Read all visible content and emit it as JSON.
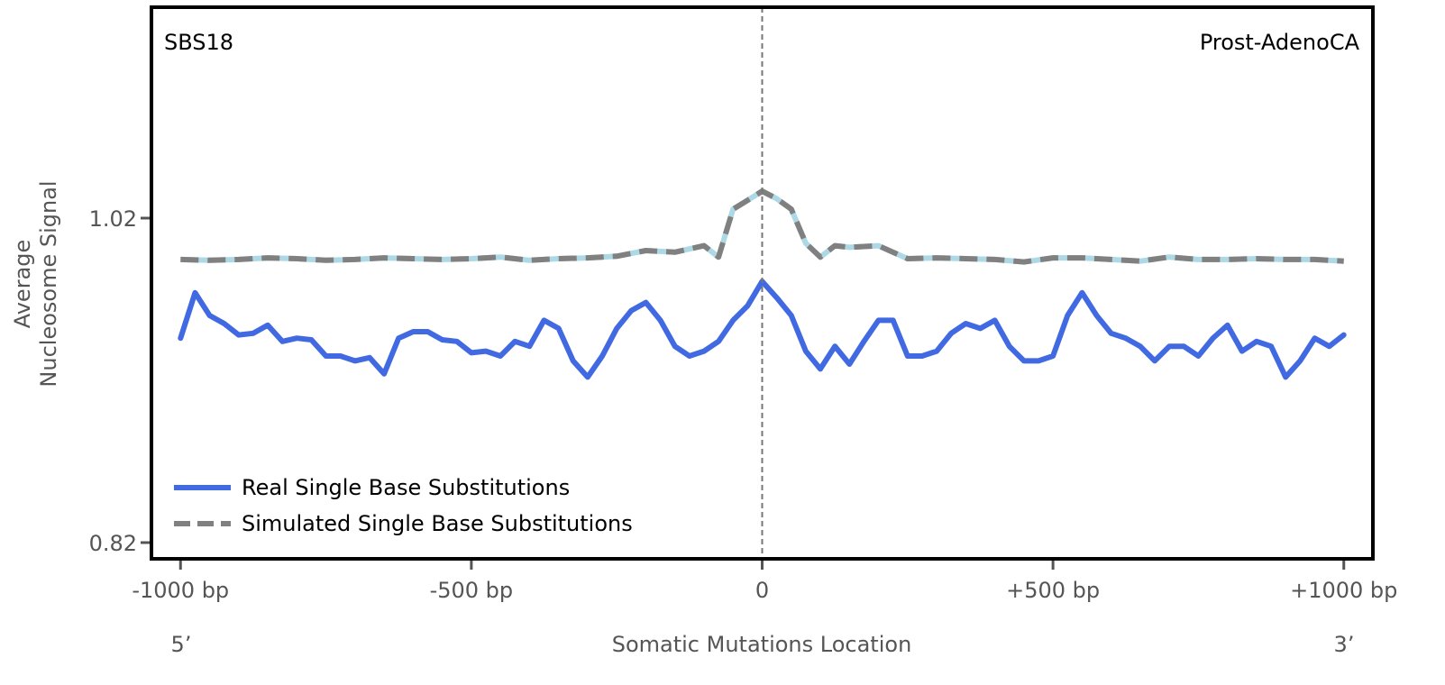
{
  "chart_data": {
    "type": "line",
    "title_left": "SBS18",
    "title_right": "Prost-AdenoCA",
    "xlabel": "Somatic Mutations Location",
    "ylabel_lines": [
      "Average",
      "Nucleosome Signal"
    ],
    "end_labels": {
      "left": "5’",
      "right": "3’"
    },
    "xlim": [
      -1050,
      1050
    ],
    "ylim": [
      0.81,
      1.15
    ],
    "x_ticks": [
      {
        "value": -1000,
        "label": "-1000 bp"
      },
      {
        "value": -500,
        "label": "-500 bp"
      },
      {
        "value": 0,
        "label": "0"
      },
      {
        "value": 500,
        "label": "+500 bp"
      },
      {
        "value": 1000,
        "label": "+1000 bp"
      }
    ],
    "y_ticks": [
      {
        "value": 1.02,
        "label": "1.02"
      },
      {
        "value": 0.82,
        "label": "0.82"
      }
    ],
    "vline_at": 0,
    "legend_position": "bottom-left",
    "series": [
      {
        "name": "Real Single Base Substitutions",
        "color": "#4169e1",
        "style": "solid",
        "x": [
          -1000,
          -975,
          -950,
          -925,
          -900,
          -875,
          -850,
          -825,
          -800,
          -775,
          -750,
          -725,
          -700,
          -675,
          -650,
          -625,
          -600,
          -575,
          -550,
          -525,
          -500,
          -475,
          -450,
          -425,
          -400,
          -375,
          -350,
          -325,
          -300,
          -275,
          -250,
          -225,
          -200,
          -175,
          -150,
          -125,
          -100,
          -75,
          -50,
          -25,
          0,
          25,
          50,
          75,
          100,
          125,
          150,
          175,
          200,
          225,
          250,
          275,
          300,
          325,
          350,
          375,
          400,
          425,
          450,
          475,
          500,
          525,
          550,
          575,
          600,
          625,
          650,
          675,
          700,
          725,
          750,
          775,
          800,
          825,
          850,
          875,
          900,
          925,
          950,
          975,
          1000
        ],
        "values": [
          0.946,
          0.974,
          0.96,
          0.955,
          0.948,
          0.949,
          0.954,
          0.944,
          0.946,
          0.945,
          0.935,
          0.935,
          0.932,
          0.934,
          0.924,
          0.946,
          0.95,
          0.95,
          0.945,
          0.944,
          0.937,
          0.938,
          0.935,
          0.944,
          0.941,
          0.957,
          0.952,
          0.932,
          0.922,
          0.935,
          0.952,
          0.963,
          0.968,
          0.957,
          0.941,
          0.935,
          0.938,
          0.944,
          0.957,
          0.966,
          0.981,
          0.971,
          0.96,
          0.938,
          0.927,
          0.941,
          0.93,
          0.944,
          0.957,
          0.957,
          0.935,
          0.935,
          0.938,
          0.949,
          0.955,
          0.952,
          0.957,
          0.941,
          0.932,
          0.932,
          0.935,
          0.96,
          0.974,
          0.96,
          0.949,
          0.946,
          0.941,
          0.932,
          0.941,
          0.941,
          0.935,
          0.946,
          0.954,
          0.938,
          0.944,
          0.941,
          0.922,
          0.932,
          0.946,
          0.941,
          0.948
        ]
      },
      {
        "name": "Simulated Single Base Substitutions",
        "color": "#808080",
        "underlay_color": "#add8e6",
        "style": "dashed",
        "x": [
          -1000,
          -950,
          -900,
          -850,
          -800,
          -750,
          -700,
          -650,
          -600,
          -550,
          -500,
          -450,
          -400,
          -350,
          -300,
          -250,
          -200,
          -150,
          -125,
          -100,
          -75,
          -50,
          -25,
          0,
          25,
          50,
          75,
          100,
          125,
          150,
          200,
          250,
          300,
          350,
          400,
          450,
          500,
          550,
          600,
          650,
          700,
          750,
          800,
          850,
          900,
          950,
          1000
        ],
        "values": [
          0.9945,
          0.994,
          0.9945,
          0.9955,
          0.995,
          0.994,
          0.9945,
          0.9955,
          0.995,
          0.9945,
          0.995,
          0.996,
          0.994,
          0.995,
          0.9955,
          0.9965,
          1.0,
          0.999,
          1.001,
          1.003,
          0.996,
          1.0255,
          1.031,
          1.0366,
          1.032,
          1.0255,
          1.0045,
          0.996,
          1.003,
          1.002,
          1.003,
          0.995,
          0.9955,
          0.995,
          0.9945,
          0.993,
          0.9955,
          0.9955,
          0.9945,
          0.9935,
          0.996,
          0.9945,
          0.9945,
          0.995,
          0.9945,
          0.9945,
          0.9935
        ]
      }
    ]
  }
}
